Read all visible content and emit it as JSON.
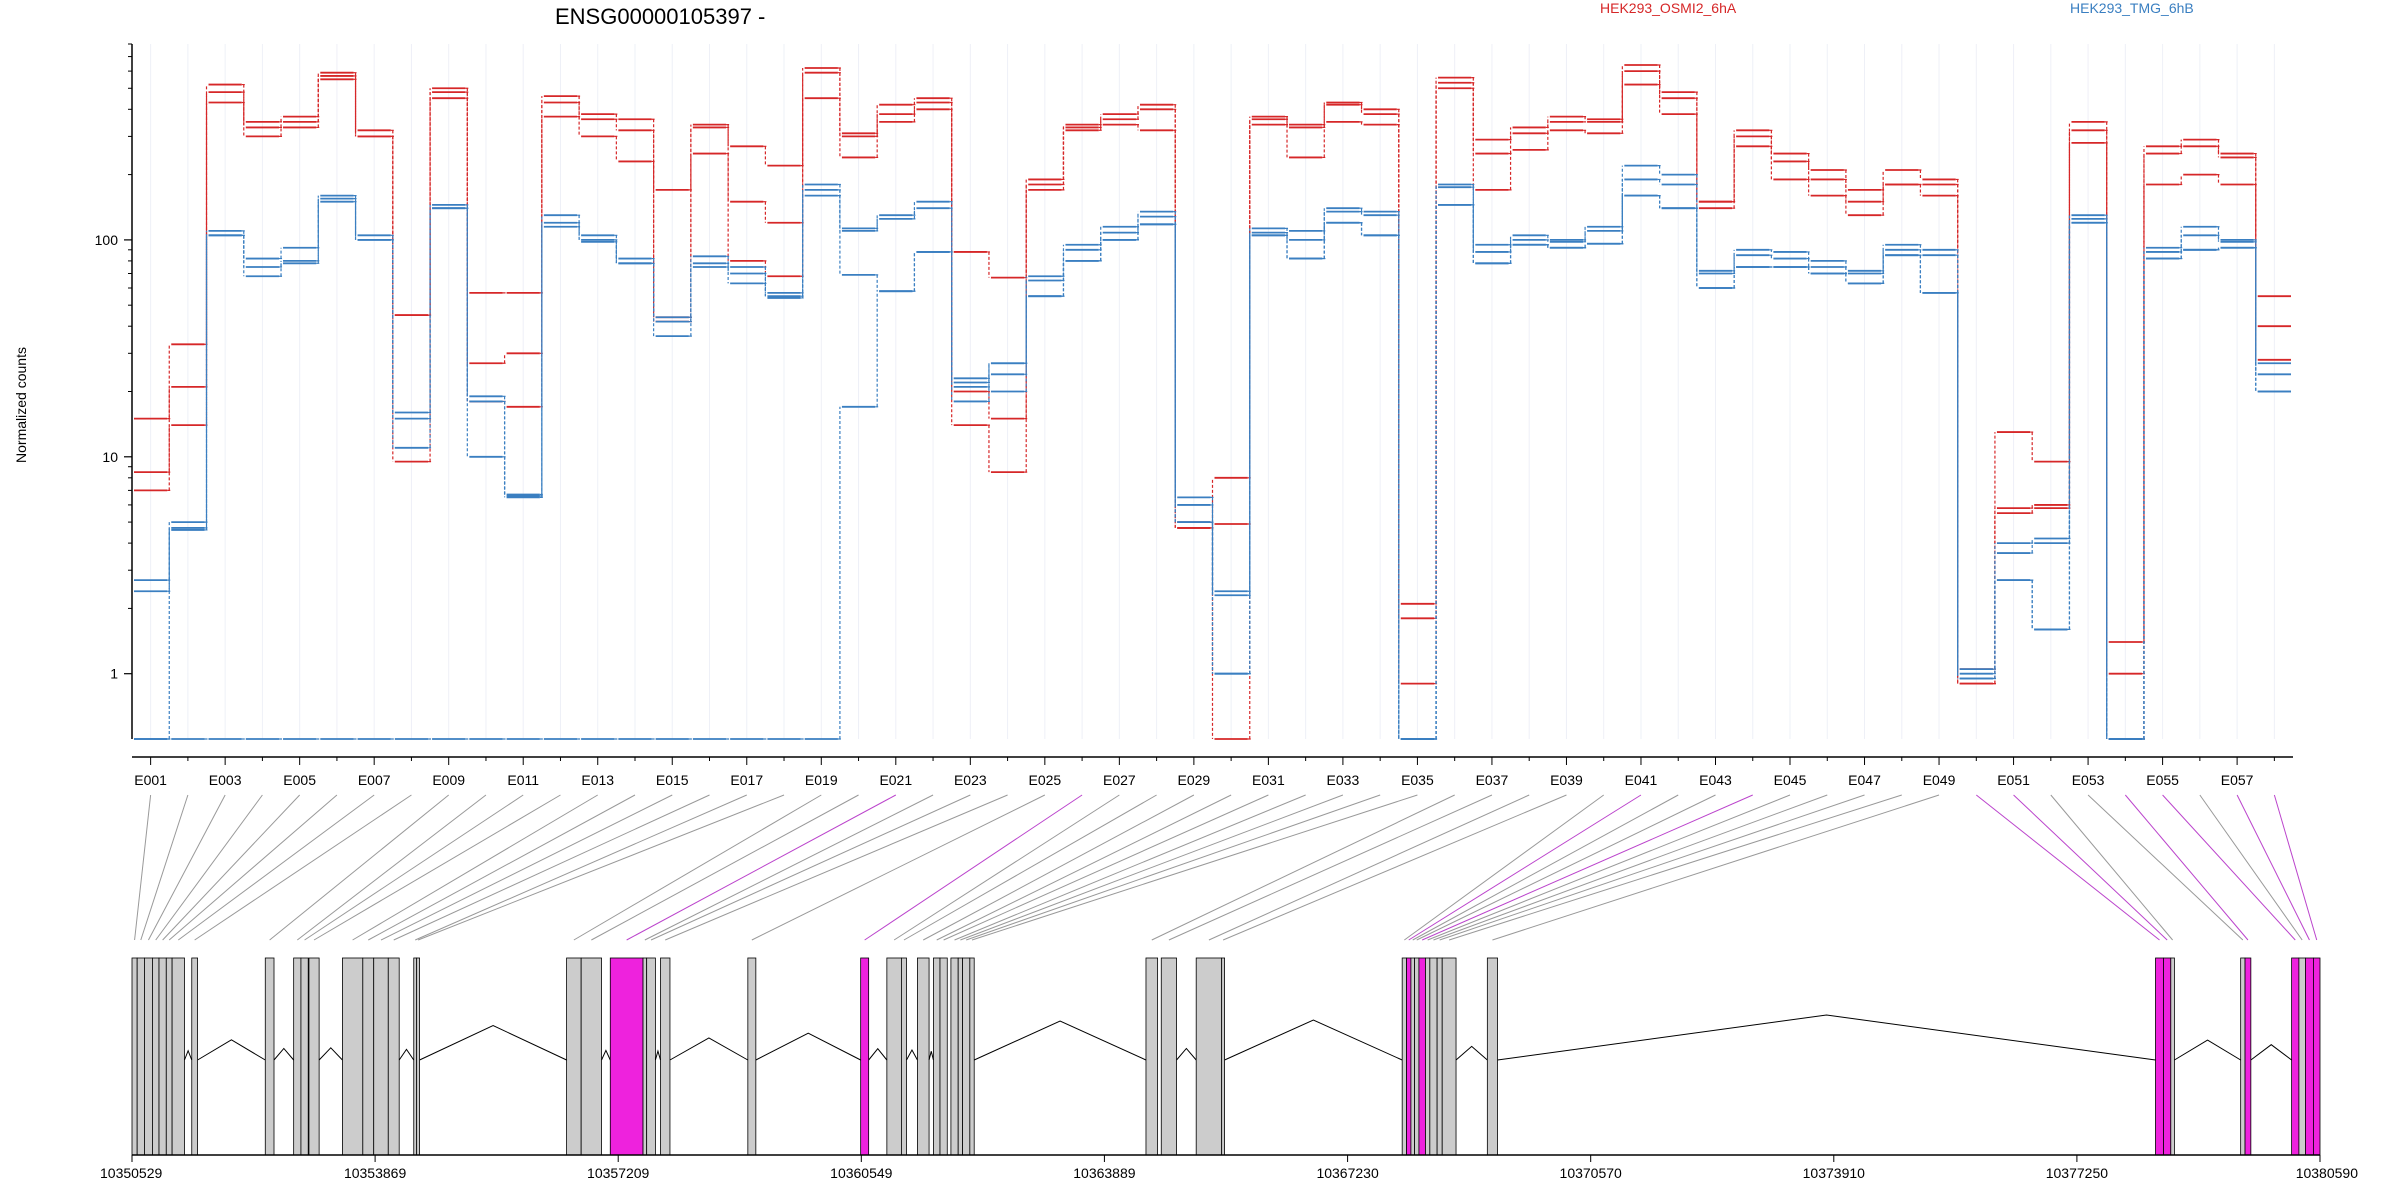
{
  "title": "ENSG00000105397 -",
  "legend": [
    {
      "label": "HEK293_OSMI2_6hA",
      "color": "#d62728"
    },
    {
      "label": "HEK293_TMG_6hB",
      "color": "#3a7fc1"
    }
  ],
  "ylabel": "Normalized counts",
  "colors": {
    "red": "#d62728",
    "blue": "#3a7fc1",
    "exon_grey": "#cccccc",
    "exon_magenta": "#ee22dd",
    "connector_grey": "#999999",
    "connector_magenta": "#bb44cc"
  },
  "chart_data": {
    "type": "line",
    "yscale": "log",
    "ylim": [
      0.5,
      800
    ],
    "yticks": [
      1,
      10,
      100
    ],
    "yticklabels": [
      "1",
      "10",
      "100"
    ],
    "categories": [
      "E001",
      "E002",
      "E003",
      "E004",
      "E005",
      "E006",
      "E007",
      "E008",
      "E009",
      "E010",
      "E011",
      "E012",
      "E013",
      "E014",
      "E015",
      "E016",
      "E017",
      "E018",
      "E019",
      "E020",
      "E021",
      "E022",
      "E023",
      "E024",
      "E025",
      "E026",
      "E027",
      "E028",
      "E029",
      "E030",
      "E031",
      "E032",
      "E033",
      "E034",
      "E035",
      "E036",
      "E037",
      "E038",
      "E039",
      "E040",
      "E041",
      "E042",
      "E043",
      "E044",
      "E045",
      "E046",
      "E047",
      "E048",
      "E049",
      "E050",
      "E051",
      "E052",
      "E053",
      "E054",
      "E055",
      "E056",
      "E057",
      "E058"
    ],
    "xticklabels": [
      "E001",
      "E003",
      "E005",
      "E007",
      "E009",
      "E011",
      "E013",
      "E015",
      "E017",
      "E019",
      "E021",
      "E023",
      "E025",
      "E027",
      "E029",
      "E031",
      "E033",
      "E035",
      "E037",
      "E039",
      "E041",
      "E043",
      "E045",
      "E047",
      "E049",
      "E051",
      "E053",
      "E055",
      "E057"
    ],
    "series": [
      {
        "group": "HEK293_OSMI2_6hA",
        "values": [
          15,
          33,
          520,
          350,
          370,
          590,
          320,
          45,
          500,
          57,
          57,
          460,
          380,
          360,
          42,
          340,
          270,
          220,
          620,
          310,
          420,
          450,
          88,
          67,
          190,
          340,
          380,
          420,
          4.7,
          8,
          370,
          340,
          430,
          400,
          2.1,
          560,
          290,
          330,
          370,
          360,
          640,
          480,
          150,
          320,
          250,
          210,
          170,
          210,
          190,
          0.9,
          13,
          9.5,
          350,
          1.4,
          270,
          290,
          250,
          55
        ]
      },
      {
        "group": "HEK293_OSMI2_6hA",
        "values": [
          8.5,
          21,
          480,
          330,
          350,
          570,
          300,
          45,
          480,
          27,
          30,
          430,
          360,
          320,
          44,
          330,
          150,
          120,
          590,
          300,
          380,
          430,
          20,
          15,
          180,
          330,
          360,
          400,
          5,
          4.9,
          360,
          330,
          420,
          380,
          1.8,
          530,
          250,
          310,
          350,
          350,
          600,
          450,
          140,
          300,
          230,
          190,
          150,
          180,
          180,
          1.05,
          5.8,
          6,
          320,
          1,
          250,
          270,
          240,
          40
        ]
      },
      {
        "group": "HEK293_OSMI2_6hA",
        "values": [
          7,
          14,
          430,
          300,
          330,
          550,
          300,
          9.5,
          450,
          18,
          17,
          370,
          300,
          230,
          170,
          250,
          80,
          68,
          450,
          240,
          350,
          400,
          14,
          8.5,
          170,
          320,
          340,
          320,
          4.7,
          0.5,
          340,
          240,
          350,
          340,
          0.9,
          500,
          170,
          260,
          320,
          310,
          520,
          380,
          150,
          270,
          190,
          160,
          130,
          180,
          160,
          0.9,
          5.5,
          5.8,
          280,
          0.5,
          180,
          200,
          180,
          28
        ]
      },
      {
        "group": "HEK293_TMG_6hB",
        "values": [
          2.7,
          5,
          110,
          82,
          92,
          160,
          105,
          16,
          145,
          19,
          6.7,
          130,
          105,
          82,
          44,
          84,
          75,
          57,
          180,
          113,
          130,
          150,
          23,
          27,
          68,
          95,
          115,
          135,
          6.5,
          2.4,
          113,
          110,
          140,
          135,
          0.5,
          180,
          95,
          105,
          100,
          115,
          220,
          200,
          72,
          90,
          88,
          80,
          72,
          95,
          90,
          1.05,
          4,
          4.2,
          130,
          0.5,
          92,
          115,
          100,
          27
        ]
      },
      {
        "group": "HEK293_TMG_6hB",
        "values": [
          2.4,
          4.7,
          105,
          75,
          80,
          155,
          100,
          15,
          140,
          18,
          6.5,
          120,
          100,
          78,
          42,
          78,
          70,
          55,
          170,
          110,
          125,
          140,
          22,
          24,
          65,
          90,
          108,
          128,
          6,
          2.3,
          108,
          100,
          135,
          130,
          0.5,
          175,
          88,
          100,
          98,
          110,
          190,
          180,
          70,
          85,
          82,
          75,
          70,
          90,
          85,
          1,
          3.6,
          4,
          125,
          0.5,
          88,
          105,
          98,
          24
        ]
      },
      {
        "group": "HEK293_TMG_6hB",
        "values": [
          0.5,
          4.6,
          105,
          68,
          78,
          150,
          100,
          11,
          140,
          10,
          6.6,
          115,
          98,
          78,
          36,
          75,
          63,
          54,
          160,
          69,
          58,
          88,
          21,
          20,
          55,
          80,
          100,
          118,
          5,
          1,
          105,
          82,
          120,
          105,
          0.5,
          145,
          78,
          95,
          92,
          96,
          160,
          140,
          60,
          75,
          75,
          70,
          63,
          85,
          57,
          0.95,
          2.7,
          1.6,
          120,
          0.5,
          82,
          90,
          92,
          20
        ]
      },
      {
        "group": "HEK293_TMG_6hB",
        "values": [
          0.5,
          0.5,
          0.5,
          0.5,
          0.5,
          0.5,
          0.5,
          0.5,
          0.5,
          0.5,
          0.5,
          0.5,
          0.5,
          0.5,
          0.5,
          0.5,
          0.5,
          0.5,
          0.5,
          17,
          58,
          88,
          18,
          27,
          55,
          80,
          100,
          118,
          5,
          1,
          105,
          82,
          120,
          105,
          0.5,
          145,
          78,
          95,
          92,
          96,
          160,
          140,
          60,
          75,
          75,
          70,
          63,
          85,
          57,
          0.95,
          2.7,
          1.6,
          120,
          0.5,
          82,
          90,
          92,
          20
        ]
      }
    ],
    "genomic_axis": {
      "range": [
        10350529,
        10380590
      ],
      "tick_labels": [
        "10350529",
        "10353869",
        "10357209",
        "10360549",
        "10363889",
        "10367230",
        "10370570",
        "10373910",
        "10377250",
        "10380590"
      ]
    },
    "exons": [
      {
        "id": "E001",
        "start": 10350529,
        "end": 10350600,
        "highlight": false
      },
      {
        "id": "E002",
        "start": 10350600,
        "end": 10350700,
        "highlight": false
      },
      {
        "id": "E003",
        "start": 10350700,
        "end": 10350810,
        "highlight": false
      },
      {
        "id": "E004",
        "start": 10350810,
        "end": 10350900,
        "highlight": false
      },
      {
        "id": "E005",
        "start": 10350900,
        "end": 10351000,
        "highlight": false
      },
      {
        "id": "E006",
        "start": 10351000,
        "end": 10351080,
        "highlight": false
      },
      {
        "id": "E007",
        "start": 10351080,
        "end": 10351250,
        "highlight": false
      },
      {
        "id": "E008",
        "start": 10351350,
        "end": 10351430,
        "highlight": false
      },
      {
        "id": "E009",
        "start": 10352360,
        "end": 10352480,
        "highlight": false
      },
      {
        "id": "E010",
        "start": 10352750,
        "end": 10352850,
        "highlight": false
      },
      {
        "id": "E011",
        "start": 10352850,
        "end": 10352950,
        "highlight": false
      },
      {
        "id": "E012",
        "start": 10352960,
        "end": 10353100,
        "highlight": false
      },
      {
        "id": "E013",
        "start": 10353420,
        "end": 10353700,
        "highlight": false
      },
      {
        "id": "E014",
        "start": 10353700,
        "end": 10353850,
        "highlight": false
      },
      {
        "id": "E015",
        "start": 10353850,
        "end": 10354050,
        "highlight": false
      },
      {
        "id": "E016",
        "start": 10354050,
        "end": 10354200,
        "highlight": false
      },
      {
        "id": "E017",
        "start": 10354400,
        "end": 10354440,
        "highlight": false
      },
      {
        "id": "E018",
        "start": 10354440,
        "end": 10354480,
        "highlight": false
      },
      {
        "id": "E019",
        "start": 10356500,
        "end": 10356700,
        "highlight": false
      },
      {
        "id": "E020",
        "start": 10356700,
        "end": 10356980,
        "highlight": false
      },
      {
        "id": "E021",
        "start": 10357100,
        "end": 10357550,
        "highlight": true
      },
      {
        "id": "E022",
        "start": 10357550,
        "end": 10357600,
        "highlight": false
      },
      {
        "id": "E023",
        "start": 10357600,
        "end": 10357720,
        "highlight": false
      },
      {
        "id": "E024",
        "start": 10357790,
        "end": 10357920,
        "highlight": false
      },
      {
        "id": "E025",
        "start": 10358990,
        "end": 10359100,
        "highlight": false
      },
      {
        "id": "E026",
        "start": 10360540,
        "end": 10360650,
        "highlight": true
      },
      {
        "id": "E027",
        "start": 10360900,
        "end": 10361100,
        "highlight": false
      },
      {
        "id": "E028",
        "start": 10361100,
        "end": 10361170,
        "highlight": false
      },
      {
        "id": "E029",
        "start": 10361320,
        "end": 10361480,
        "highlight": false
      },
      {
        "id": "E030",
        "start": 10361540,
        "end": 10361630,
        "highlight": false
      },
      {
        "id": "E031",
        "start": 10361630,
        "end": 10361730,
        "highlight": false
      },
      {
        "id": "E032",
        "start": 10361780,
        "end": 10361880,
        "highlight": false
      },
      {
        "id": "E033",
        "start": 10361880,
        "end": 10361940,
        "highlight": false
      },
      {
        "id": "E034",
        "start": 10361940,
        "end": 10362040,
        "highlight": false
      },
      {
        "id": "E035",
        "start": 10362040,
        "end": 10362100,
        "highlight": false
      },
      {
        "id": "E036",
        "start": 10364460,
        "end": 10364620,
        "highlight": false
      },
      {
        "id": "E037",
        "start": 10364670,
        "end": 10364880,
        "highlight": false
      },
      {
        "id": "E038",
        "start": 10365150,
        "end": 10365500,
        "highlight": false
      },
      {
        "id": "E039",
        "start": 10365500,
        "end": 10365540,
        "highlight": false
      },
      {
        "id": "E040",
        "start": 10367980,
        "end": 10368040,
        "highlight": false
      },
      {
        "id": "E041",
        "start": 10368040,
        "end": 10368100,
        "highlight": true
      },
      {
        "id": "E042",
        "start": 10368100,
        "end": 10368150,
        "highlight": false
      },
      {
        "id": "E043",
        "start": 10368150,
        "end": 10368210,
        "highlight": false
      },
      {
        "id": "E044",
        "start": 10368210,
        "end": 10368300,
        "highlight": true
      },
      {
        "id": "E045",
        "start": 10368300,
        "end": 10368360,
        "highlight": false
      },
      {
        "id": "E046",
        "start": 10368360,
        "end": 10368460,
        "highlight": false
      },
      {
        "id": "E047",
        "start": 10368460,
        "end": 10368530,
        "highlight": false
      },
      {
        "id": "E048",
        "start": 10368530,
        "end": 10368720,
        "highlight": false
      },
      {
        "id": "E049",
        "start": 10369150,
        "end": 10369290,
        "highlight": false
      },
      {
        "id": "E050",
        "start": 10378330,
        "end": 10378440,
        "highlight": true
      },
      {
        "id": "E051",
        "start": 10378440,
        "end": 10378540,
        "highlight": true
      },
      {
        "id": "E052",
        "start": 10378540,
        "end": 10378590,
        "highlight": false
      },
      {
        "id": "E053",
        "start": 10379500,
        "end": 10379560,
        "highlight": false
      },
      {
        "id": "E054",
        "start": 10379560,
        "end": 10379640,
        "highlight": true
      },
      {
        "id": "E055",
        "start": 10380200,
        "end": 10380300,
        "highlight": true
      },
      {
        "id": "E056",
        "start": 10380300,
        "end": 10380390,
        "highlight": false
      },
      {
        "id": "E057",
        "start": 10380390,
        "end": 10380500,
        "highlight": true
      },
      {
        "id": "E058",
        "start": 10380500,
        "end": 10380590,
        "highlight": true
      }
    ]
  }
}
